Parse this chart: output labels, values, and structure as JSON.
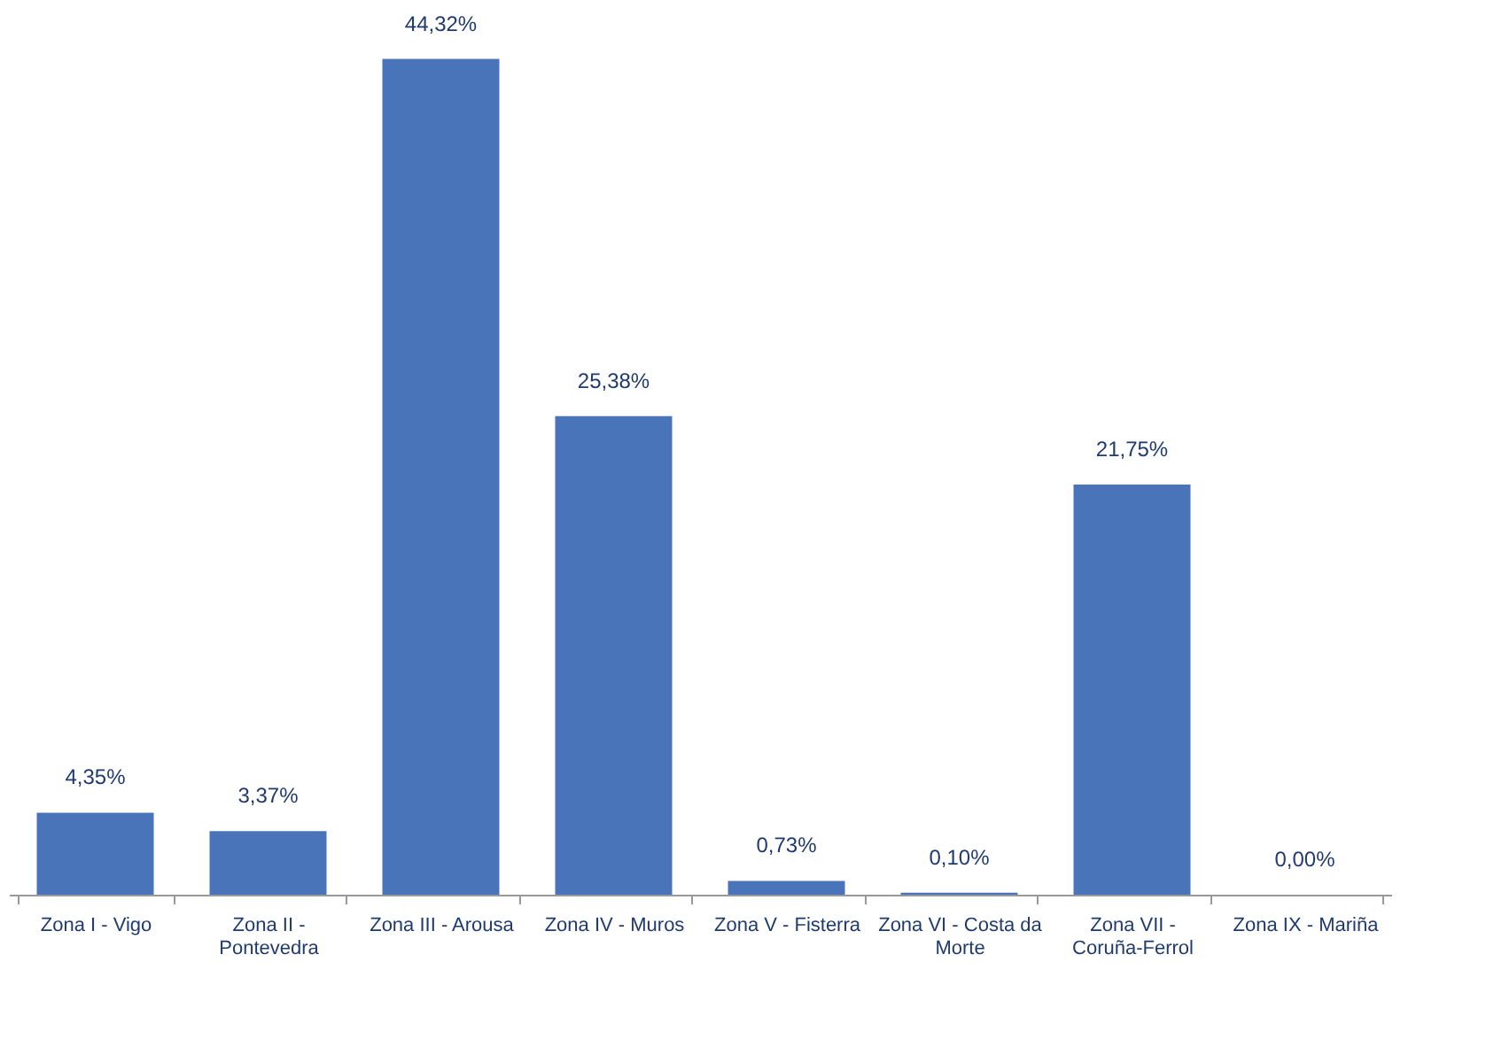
{
  "chart_data": {
    "type": "bar",
    "categories": [
      "Zona I - Vigo",
      "Zona II - Pontevedra",
      "Zona III - Arousa",
      "Zona IV - Muros",
      "Zona V - Fisterra",
      "Zona VI - Costa da Morte",
      "Zona VII - Coruña-Ferrol",
      "Zona IX - Mariña"
    ],
    "values": [
      4.35,
      3.37,
      44.32,
      25.38,
      0.73,
      0.1,
      21.75,
      0.0
    ],
    "value_labels": [
      "4,35%",
      "3,37%",
      "44,32%",
      "25,38%",
      "0,73%",
      "0,10%",
      "21,75%",
      "0,00%"
    ],
    "color": "#4a74b9",
    "grid": false
  }
}
